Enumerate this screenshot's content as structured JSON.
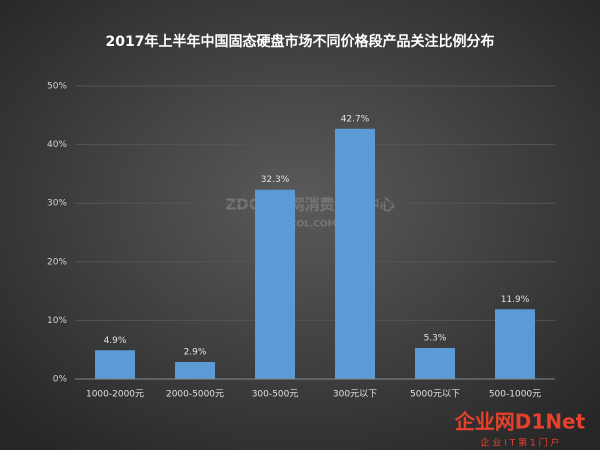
{
  "chart_data": {
    "type": "bar",
    "title": "2017年上半年中国固态硬盘市场不同价格段产品关注比例分布",
    "categories": [
      "1000-2000元",
      "2000-5000元",
      "300-500元",
      "300元以下",
      "5000元以下",
      "500-1000元"
    ],
    "values": [
      4.9,
      2.9,
      32.3,
      42.7,
      5.3,
      11.9
    ],
    "value_labels": [
      "4.9%",
      "2.9%",
      "32.3%",
      "42.7%",
      "5.3%",
      "11.9%"
    ],
    "color": "#5b9bd5",
    "ylim": [
      0,
      50
    ],
    "yticks": [
      {
        "value": 0,
        "label": "0%"
      },
      {
        "value": 10,
        "label": "10%"
      },
      {
        "value": 20,
        "label": "20%"
      },
      {
        "value": 30,
        "label": "30%"
      },
      {
        "value": 40,
        "label": "40%"
      },
      {
        "value": 50,
        "label": "50%"
      }
    ],
    "grid": true,
    "watermark": "ZDC互联网消费调研中心",
    "watermark_url": "ZDC.ZOL.COM.CN"
  },
  "logo": {
    "text": "企业网D1Net",
    "tagline": "企 业 I T 第 1 门 户"
  }
}
